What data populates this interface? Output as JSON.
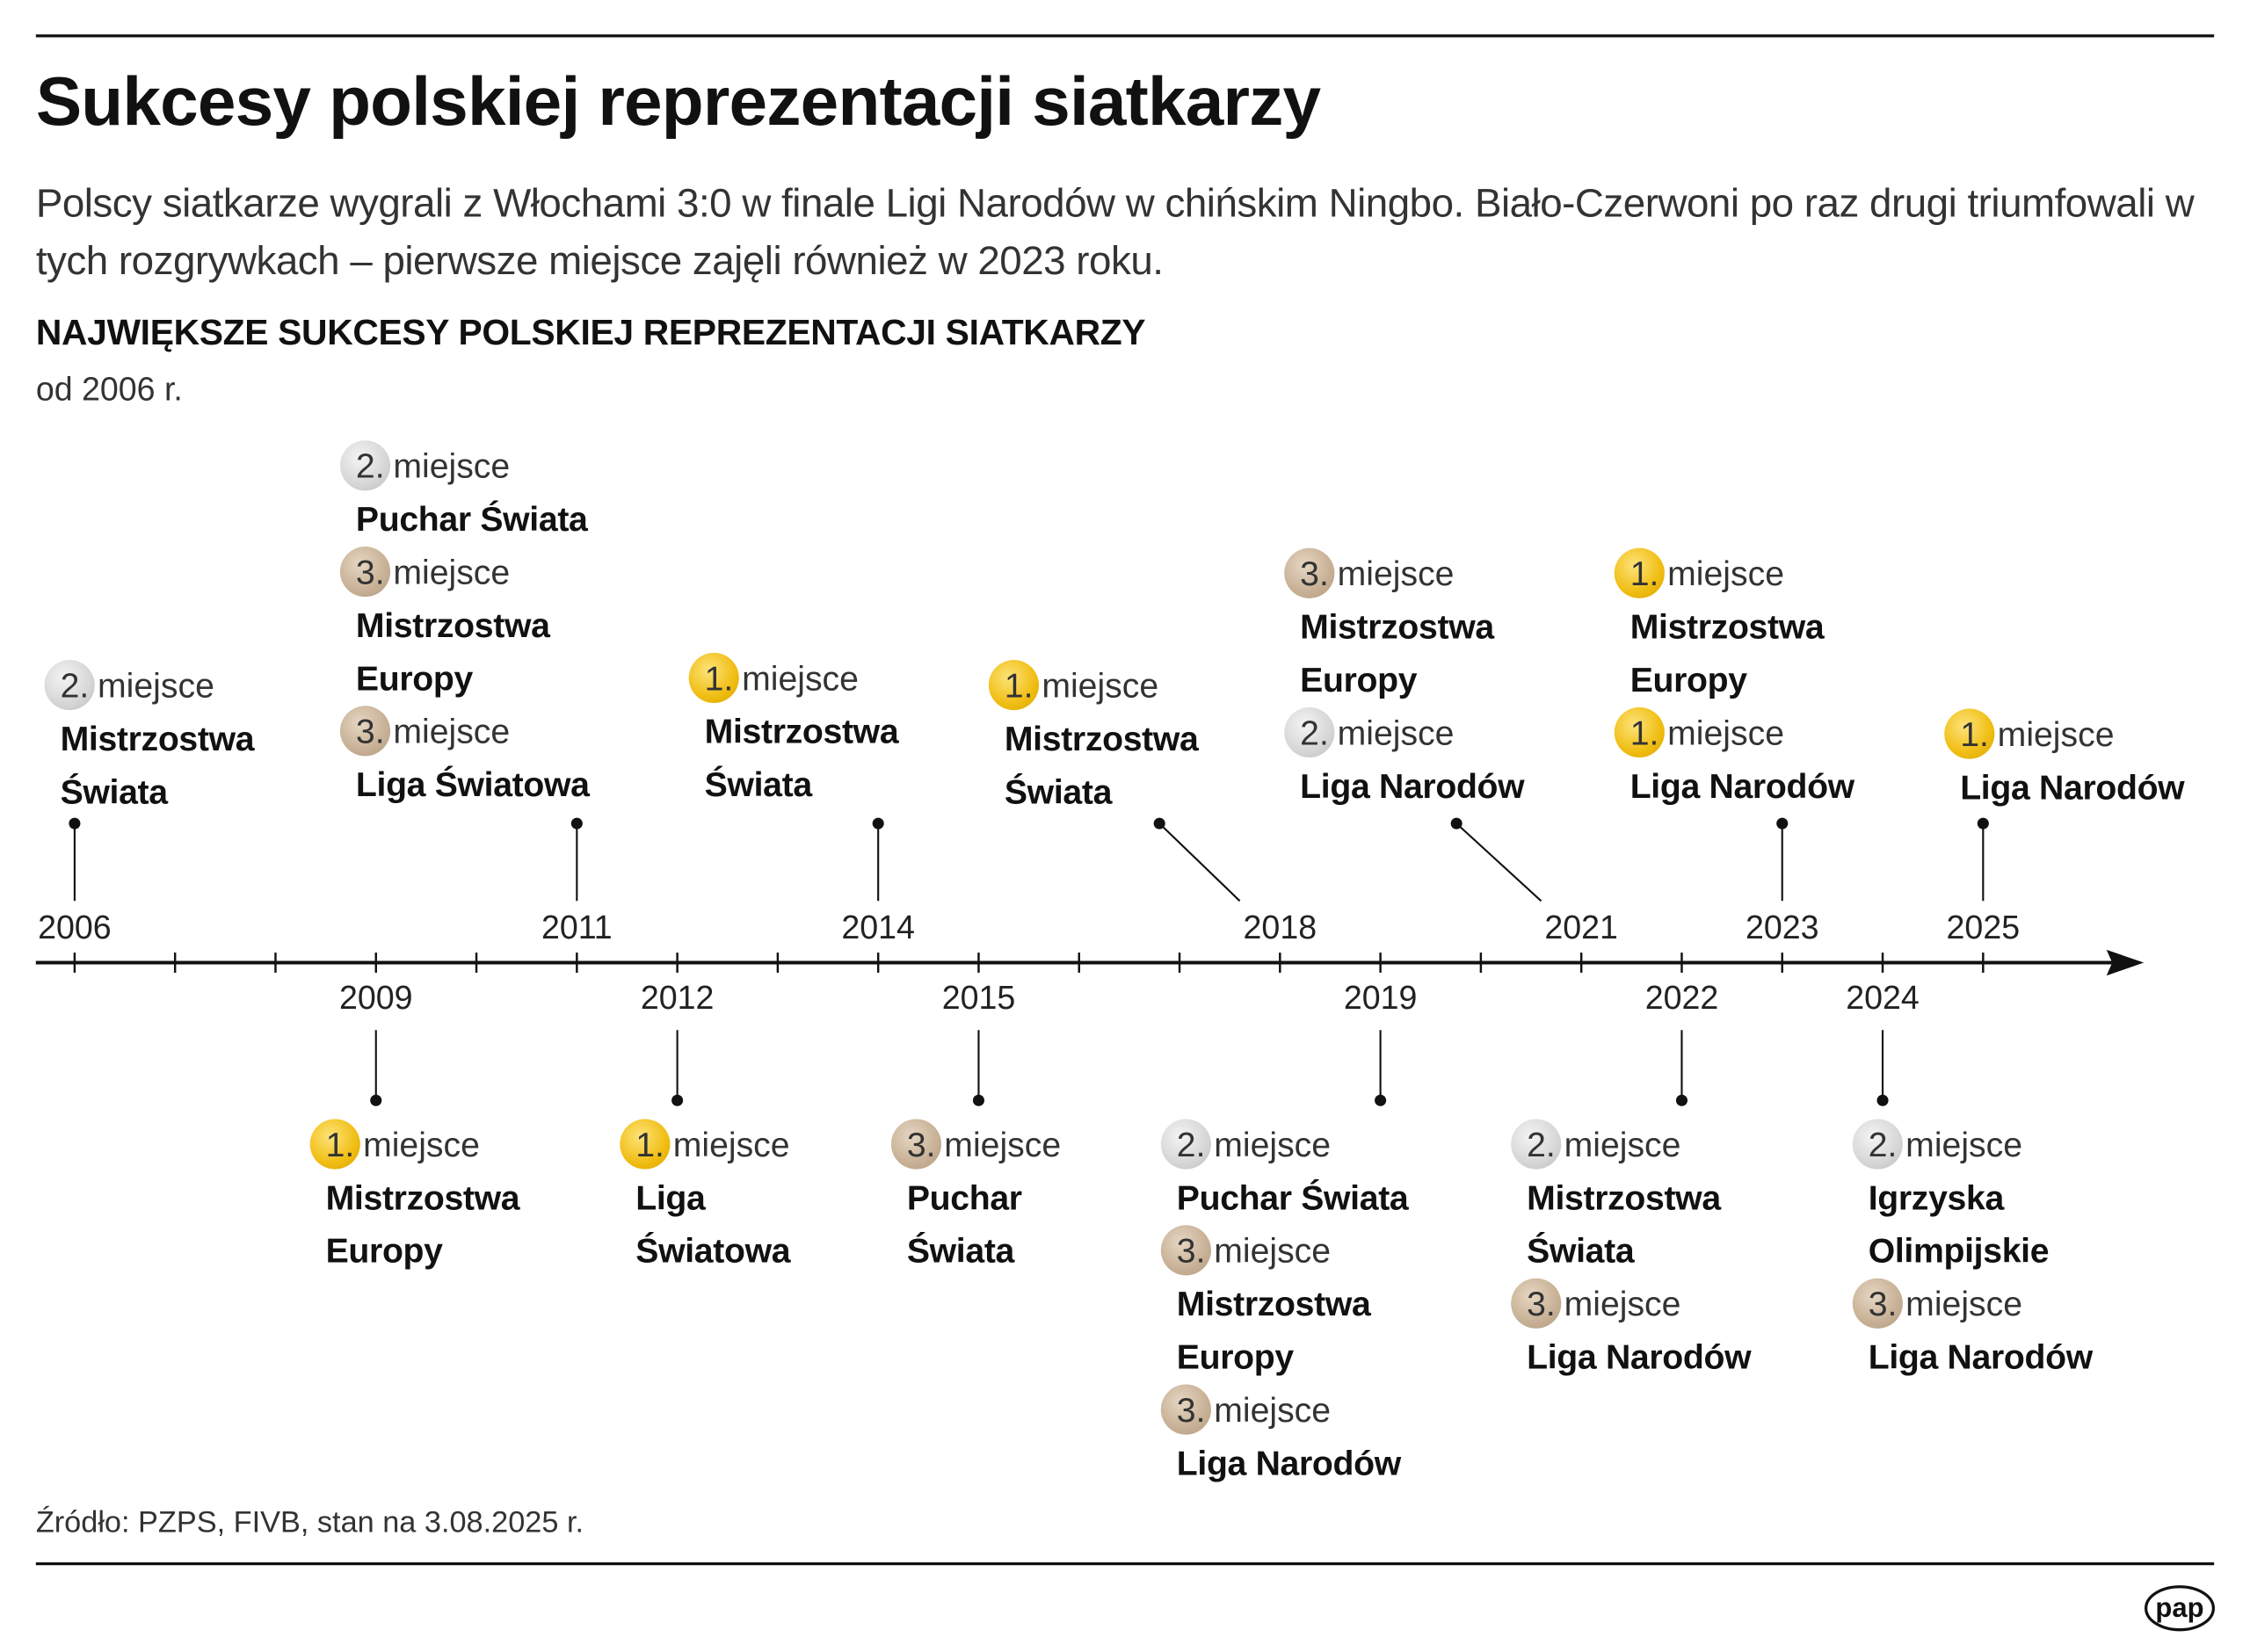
{
  "title": "Sukcesy polskiej reprezentacji siatkarzy",
  "subtitle": "Polscy siatkarze wygrali z Włochami 3:0 w finale Ligi Narodów w chińskim Ningbo. Biało-Czerwoni po raz drugi triumfowali w tych rozgrywkach – pierwsze miejsce zajęli również w 2023 roku.",
  "section_title": "NAJWIĘKSZE SUKCESY POLSKIEJ REPREZENTACJI SIATKARZY",
  "section_subtitle": "od 2006 r.",
  "place_suffix": "miejsce",
  "medal_colors": {
    "1": "#f0bd12",
    "2": "#d6d6d6",
    "3": "#c7b095"
  },
  "axis": {
    "start_year": 2006,
    "end_year": 2025,
    "tick_every_year": true,
    "arrow": "right"
  },
  "timeline": [
    {
      "year": "2006",
      "side": "top",
      "results": [
        {
          "place": "2.",
          "event": "Mistrzostwa\nŚwiata"
        }
      ]
    },
    {
      "year": "2009",
      "side": "bottom",
      "results": [
        {
          "place": "1.",
          "event": "Mistrzostwa\nEuropy"
        }
      ]
    },
    {
      "year": "2011",
      "side": "top",
      "results": [
        {
          "place": "2.",
          "event": "Puchar Świata"
        },
        {
          "place": "3.",
          "event": "Mistrzostwa\nEuropy"
        },
        {
          "place": "3.",
          "event": "Liga Światowa"
        }
      ]
    },
    {
      "year": "2012",
      "side": "bottom",
      "results": [
        {
          "place": "1.",
          "event": "Liga\nŚwiatowa"
        }
      ]
    },
    {
      "year": "2014",
      "side": "top",
      "results": [
        {
          "place": "1.",
          "event": "Mistrzostwa\nŚwiata"
        }
      ]
    },
    {
      "year": "2015",
      "side": "bottom",
      "results": [
        {
          "place": "3.",
          "event": "Puchar\nŚwiata"
        }
      ]
    },
    {
      "year": "2018",
      "side": "top",
      "results": [
        {
          "place": "1.",
          "event": "Mistrzostwa\nŚwiata"
        }
      ]
    },
    {
      "year": "2019",
      "side": "bottom",
      "results": [
        {
          "place": "2.",
          "event": "Puchar Świata"
        },
        {
          "place": "3.",
          "event": "Mistrzostwa\nEuropy"
        },
        {
          "place": "3.",
          "event": "Liga Narodów"
        }
      ]
    },
    {
      "year": "2021",
      "side": "top",
      "results": [
        {
          "place": "3.",
          "event": "Mistrzostwa\nEuropy"
        },
        {
          "place": "2.",
          "event": "Liga Narodów"
        }
      ]
    },
    {
      "year": "2022",
      "side": "bottom",
      "results": [
        {
          "place": "2.",
          "event": "Mistrzostwa\nŚwiata"
        },
        {
          "place": "3.",
          "event": "Liga Narodów"
        }
      ]
    },
    {
      "year": "2023",
      "side": "top",
      "results": [
        {
          "place": "1.",
          "event": "Mistrzostwa\nEuropy"
        },
        {
          "place": "1.",
          "event": "Liga Narodów"
        }
      ]
    },
    {
      "year": "2024",
      "side": "bottom",
      "results": [
        {
          "place": "2.",
          "event": "Igrzyska\nOlimpijskie"
        },
        {
          "place": "3.",
          "event": "Liga Narodów"
        }
      ]
    },
    {
      "year": "2025",
      "side": "top",
      "results": [
        {
          "place": "1.",
          "event": "Liga Narodów"
        }
      ]
    }
  ],
  "source": "Źródło: PZPS, FIVB, stan na 3.08.2025 r.",
  "logo": "pap"
}
